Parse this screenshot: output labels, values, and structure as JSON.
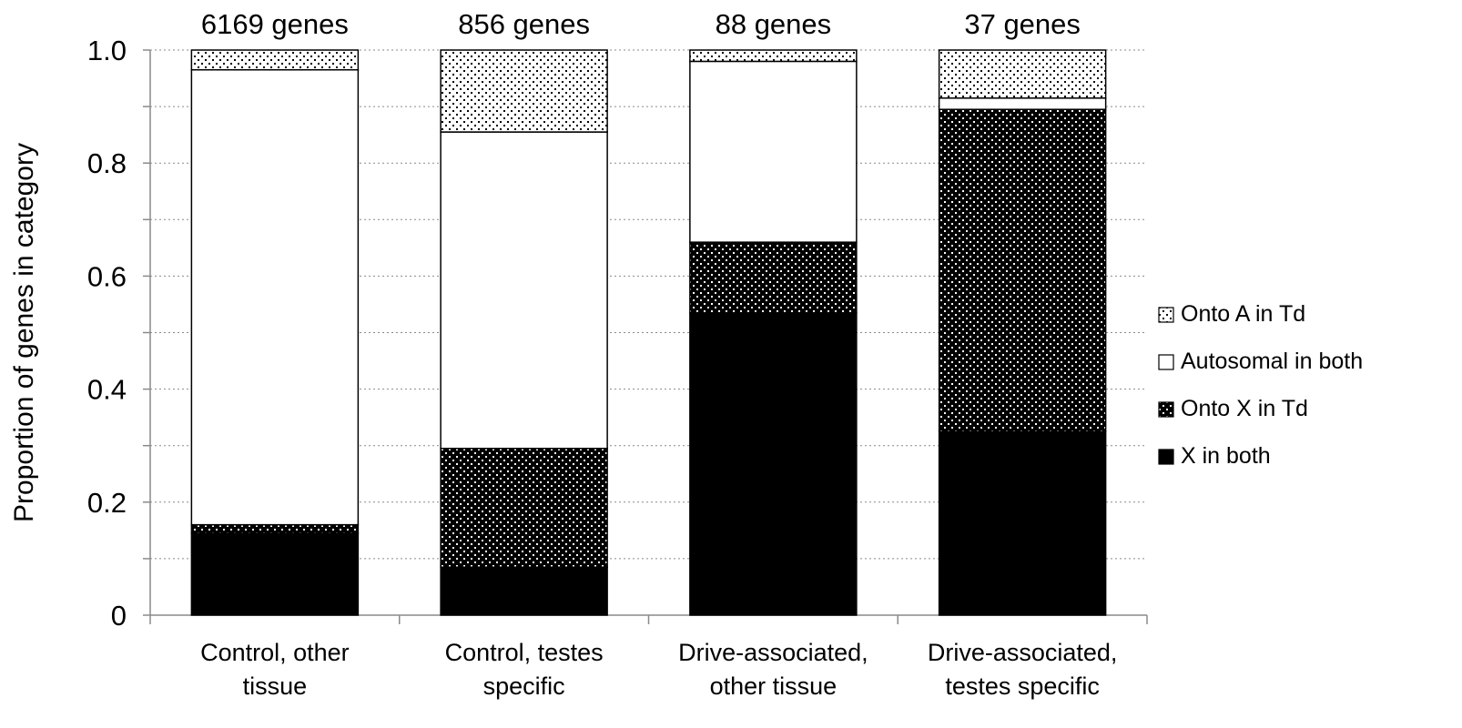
{
  "chart_data": {
    "type": "bar",
    "stacked": true,
    "categories": [
      [
        "Control, other",
        "tissue"
      ],
      [
        "Control, testes",
        "specific"
      ],
      [
        "Drive-associated,",
        "other  tissue"
      ],
      [
        "Drive-associated,",
        "testes specific"
      ]
    ],
    "bar_top_labels": [
      "6169 genes",
      "856 genes",
      "88 genes",
      "37 genes"
    ],
    "ylabel": "Proportion of genes in category",
    "ylim": [
      0,
      1.0
    ],
    "yticks": [
      0,
      0.2,
      0.4,
      0.6,
      0.8,
      1.0
    ],
    "ytick_labels": [
      "0",
      "0.2",
      "0.4",
      "0.6",
      "0.8",
      "1.0"
    ],
    "grid": true,
    "legend_position": "right",
    "series": [
      {
        "name": "X in both",
        "values": [
          0.145,
          0.085,
          0.535,
          0.325
        ],
        "fill": "solid-black"
      },
      {
        "name": "Onto X in Td",
        "values": [
          0.015,
          0.21,
          0.125,
          0.57
        ],
        "fill": "dense-dots"
      },
      {
        "name": "Autosomal in both",
        "values": [
          0.805,
          0.56,
          0.32,
          0.02
        ],
        "fill": "white"
      },
      {
        "name": "Onto A in Td",
        "values": [
          0.035,
          0.145,
          0.02,
          0.085
        ],
        "fill": "sparse-dots"
      }
    ],
    "legend_order": [
      "Onto A in Td",
      "Autosomal in both",
      "Onto X in Td",
      "X in both"
    ]
  },
  "colors": {
    "bar_outline": "#000000",
    "grid": "#8a8a8a",
    "dark_fill": "#000000",
    "light_fill": "#ffffff"
  }
}
